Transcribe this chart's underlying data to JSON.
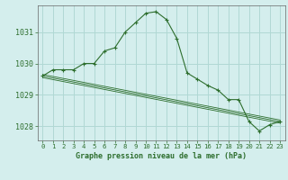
{
  "title": "Graphe pression niveau de la mer (hPa)",
  "background_color": "#d4eeed",
  "grid_color": "#b0d8d4",
  "line_color": "#2d6e2d",
  "marker_color": "#2d6e2d",
  "xlim": [
    -0.5,
    23.5
  ],
  "ylim": [
    1027.55,
    1031.85
  ],
  "yticks": [
    1028,
    1029,
    1030,
    1031
  ],
  "xticks": [
    0,
    1,
    2,
    3,
    4,
    5,
    6,
    7,
    8,
    9,
    10,
    11,
    12,
    13,
    14,
    15,
    16,
    17,
    18,
    19,
    20,
    21,
    22,
    23
  ],
  "series": [
    {
      "x": [
        0,
        1,
        2,
        3,
        4,
        5,
        6,
        7,
        8,
        9,
        10,
        11,
        12,
        13,
        14,
        15,
        16,
        17,
        18,
        19,
        20,
        21,
        22,
        23
      ],
      "y": [
        1029.6,
        1029.8,
        1029.8,
        1029.8,
        1030.0,
        1030.0,
        1030.4,
        1030.5,
        1031.0,
        1031.3,
        1031.6,
        1031.65,
        1031.4,
        1030.8,
        1029.7,
        1029.5,
        1029.3,
        1029.15,
        1028.85,
        1028.85,
        1028.15,
        1027.85,
        1028.05,
        1028.15
      ]
    },
    {
      "x": [
        0,
        23
      ],
      "y": [
        1029.65,
        1028.2
      ]
    },
    {
      "x": [
        0,
        23
      ],
      "y": [
        1029.6,
        1028.15
      ]
    },
    {
      "x": [
        0,
        23
      ],
      "y": [
        1029.55,
        1028.1
      ]
    }
  ]
}
